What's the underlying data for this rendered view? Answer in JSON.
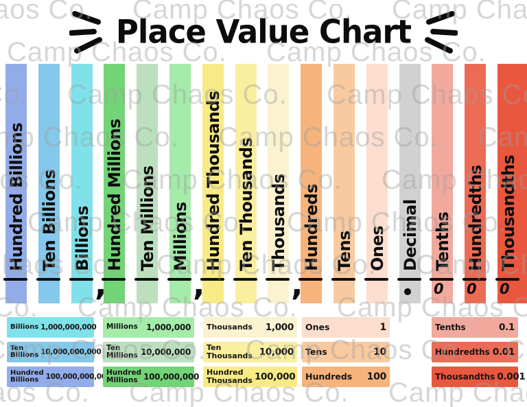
{
  "watermark": {
    "text": "Camp Chaos Co."
  },
  "title": {
    "text": "Place Value Chart"
  },
  "columns": [
    {
      "label": "Hundred Billions",
      "color": "#93ACE9",
      "below": "",
      "separator_after": ""
    },
    {
      "label": "Ten Billions",
      "color": "#84C8EC",
      "below": "",
      "separator_after": ""
    },
    {
      "label": "Billions",
      "color": "#7FE1E9",
      "below": "",
      "separator_after": ","
    },
    {
      "label": "Hundred Millions",
      "color": "#73D377",
      "below": "",
      "separator_after": ""
    },
    {
      "label": "Ten Millions",
      "color": "#BCE0BE",
      "below": "",
      "separator_after": ""
    },
    {
      "label": "Millions",
      "color": "#A5EBAA",
      "below": "",
      "separator_after": ","
    },
    {
      "label": "Hundred Thousands",
      "color": "#F8EB86",
      "below": "",
      "separator_after": ""
    },
    {
      "label": "Ten Thousands",
      "color": "#FAEF9F",
      "below": "",
      "separator_after": ""
    },
    {
      "label": "Thousands",
      "color": "#FBF2D0",
      "below": "",
      "separator_after": ","
    },
    {
      "label": "Hundreds",
      "color": "#F6B47C",
      "below": "",
      "separator_after": ""
    },
    {
      "label": "Tens",
      "color": "#F9CA9F",
      "below": "",
      "separator_after": ""
    },
    {
      "label": "Ones",
      "color": "#FCDDCE",
      "below": "",
      "separator_after": ""
    },
    {
      "label": "Decimal",
      "color": "#D1D1D1",
      "below": ".",
      "separator_after": ""
    },
    {
      "label": "Tenths",
      "color": "#F1A99E",
      "below": "0",
      "separator_after": ""
    },
    {
      "label": "Hundredths",
      "color": "#EC6B55",
      "below": "0",
      "separator_after": ""
    },
    {
      "label": "Thousandths",
      "color": "#E9573F",
      "below": "0",
      "separator_after": ""
    }
  ],
  "legend": {
    "groups": [
      {
        "entries": [
          {
            "name": "Billions",
            "value": "1,000,000,000",
            "color": "#7FE1E9"
          },
          {
            "name": "Ten Billions",
            "value": "10,000,000,000",
            "color": "#84C8EC"
          },
          {
            "name": "Hundred Billions",
            "value": "100,000,000,000",
            "color": "#93ACE9"
          }
        ]
      },
      {
        "entries": [
          {
            "name": "Millions",
            "value": "1,000,000",
            "color": "#A5EBAA"
          },
          {
            "name": "Ten Millions",
            "value": "10,000,000",
            "color": "#BCE0BE"
          },
          {
            "name": "Hundred Millions",
            "value": "100,000,000",
            "color": "#73D377"
          }
        ]
      },
      {
        "entries": [
          {
            "name": "Thousands",
            "value": "1,000",
            "color": "#FBF2D0"
          },
          {
            "name": "Ten Thousands",
            "value": "10,000",
            "color": "#FAEF9F"
          },
          {
            "name": "Hundred Thousands",
            "value": "100,000",
            "color": "#F8EB86"
          }
        ]
      },
      {
        "entries": [
          {
            "name": "Ones",
            "value": "1",
            "color": "#FCDDCE"
          },
          {
            "name": "Tens",
            "value": "10",
            "color": "#F9CA9F"
          },
          {
            "name": "Hundreds",
            "value": "100",
            "color": "#F6B47C"
          }
        ]
      },
      {
        "entries": [
          {
            "name": "Tenths",
            "value": "0.1",
            "color": "#F1A99E"
          },
          {
            "name": "Hundredths",
            "value": "0.01",
            "color": "#EC6B55"
          },
          {
            "name": "Thousandths",
            "value": "0.001",
            "color": "#E9573F"
          }
        ]
      }
    ]
  }
}
